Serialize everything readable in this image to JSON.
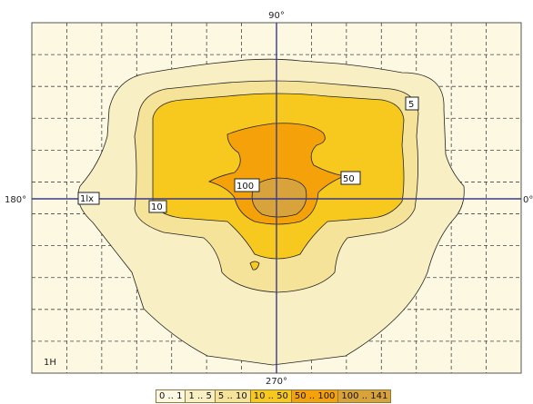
{
  "chart_data": {
    "type": "contour",
    "axes": {
      "top_label": "90°",
      "bottom_label": "270°",
      "left_label": "180°",
      "right_label": "0°",
      "corner_label": "1H"
    },
    "grid": true,
    "contours": [
      {
        "level": 1,
        "label": "1lx",
        "color": "#f9efc4"
      },
      {
        "level": 5,
        "label": "5",
        "color": "#f5e39a"
      },
      {
        "level": 10,
        "label": "10",
        "color": "#f7c91f"
      },
      {
        "level": 50,
        "label": "50",
        "color": "#f5a20a"
      },
      {
        "level": 100,
        "label": "100",
        "color": "#d8a33a"
      }
    ],
    "legend": [
      {
        "label": "0 .. 1",
        "color": "#fdf8e2"
      },
      {
        "label": "1 .. 5",
        "color": "#f9efc4"
      },
      {
        "label": "5 .. 10",
        "color": "#f5e39a"
      },
      {
        "label": "10 .. 50",
        "color": "#f7c91f"
      },
      {
        "label": "50 .. 100",
        "color": "#f5a20a"
      },
      {
        "label": "100 .. 141",
        "color": "#d8a33a"
      }
    ],
    "colors": {
      "background": "#fdf8e2",
      "axis": "#3a3a8a",
      "grid": "#444444"
    }
  }
}
